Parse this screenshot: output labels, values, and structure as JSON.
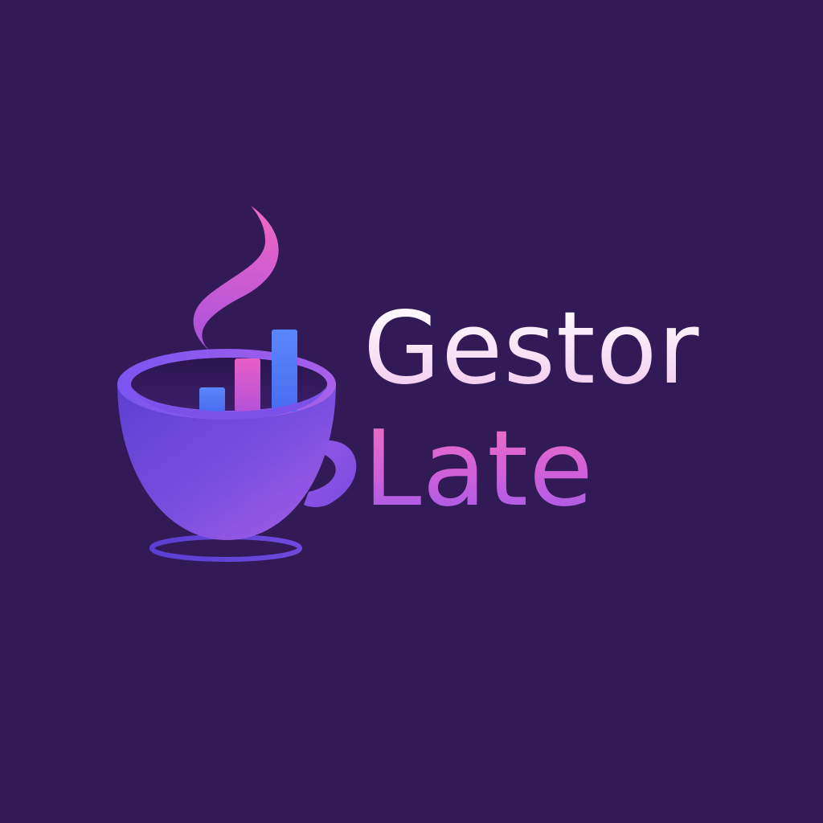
{
  "logo": {
    "name_line1": "Gestor",
    "name_line2": "Late",
    "icon": "coffee-cup-with-bar-chart-icon"
  },
  "colors": {
    "background": "#321a57",
    "cup_light": "#9a5be8",
    "cup_dark": "#4c3bc8",
    "steam": "#f062c4",
    "bar_blue": "#4f7cf8",
    "bar_pink": "#e05cc8",
    "text_light": "#f8dcf5",
    "text_pink": "#e066d6"
  }
}
